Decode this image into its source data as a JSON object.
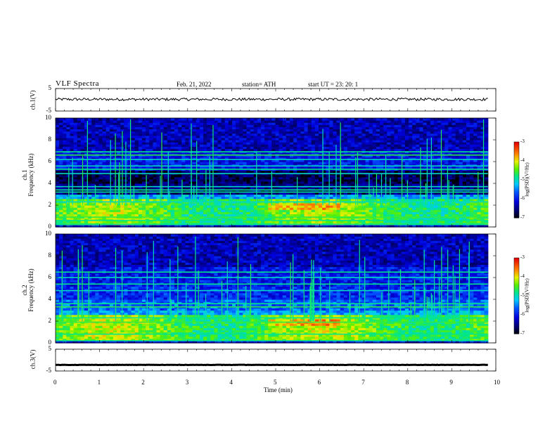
{
  "header": {
    "title": "VLF  Spectra",
    "date": "Feb. 21, 2022",
    "station": "station= ATH",
    "start": "start  UT  =    23: 20: 1"
  },
  "chart_data": [
    {
      "type": "line",
      "ylabel": "ch.1(V)",
      "ylim": [
        -5,
        5
      ],
      "yticks": [
        "5",
        "-5"
      ],
      "xlim": [
        0,
        10
      ],
      "mean_level": 0.2,
      "color": "#000000"
    },
    {
      "type": "heatmap",
      "ylabel": "ch.1\nFrequency  (kHz)",
      "ylim": [
        0,
        10
      ],
      "yticks": [
        "10",
        "8",
        "6",
        "4",
        "2",
        "0"
      ],
      "xlim": [
        0,
        10
      ],
      "colorbar": {
        "title": "log(PSD)(V²/Hz)",
        "range": [
          -7,
          -3
        ],
        "ticks": [
          "-3",
          "-4",
          "-5",
          "-6",
          "-7"
        ]
      }
    },
    {
      "type": "heatmap",
      "ylabel": "ch.2\nFrequency  (kHz)",
      "ylim": [
        0,
        10
      ],
      "yticks": [
        "10",
        "8",
        "6",
        "4",
        "2",
        "0"
      ],
      "xlim": [
        0,
        10
      ],
      "colorbar": {
        "title": "log(PSD)(V²/Hz)",
        "range": [
          -7,
          -3
        ],
        "ticks": [
          "-3",
          "-4",
          "-5",
          "-6",
          "-7"
        ]
      }
    },
    {
      "type": "line",
      "ylabel": "ch.3(V)",
      "ylim": [
        -5,
        5
      ],
      "yticks": [
        "5",
        "-5"
      ],
      "xlim": [
        0,
        10
      ],
      "mean_level": -2.2,
      "color": "#000000"
    }
  ],
  "xaxis": {
    "label": "Time  (min)",
    "ticks": [
      "0",
      "1",
      "2",
      "3",
      "4",
      "5",
      "6",
      "7",
      "8",
      "9",
      "10"
    ]
  },
  "ylabels": {
    "ch1v": "ch.1(V)",
    "ch1a": "ch.1",
    "ch1b": "Frequency  (kHz)",
    "ch2a": "ch.2",
    "ch2b": "Frequency  (kHz)",
    "ch3v": "ch.3(V)"
  },
  "colorbar_title": "log(PSD)(V²/Hz)"
}
